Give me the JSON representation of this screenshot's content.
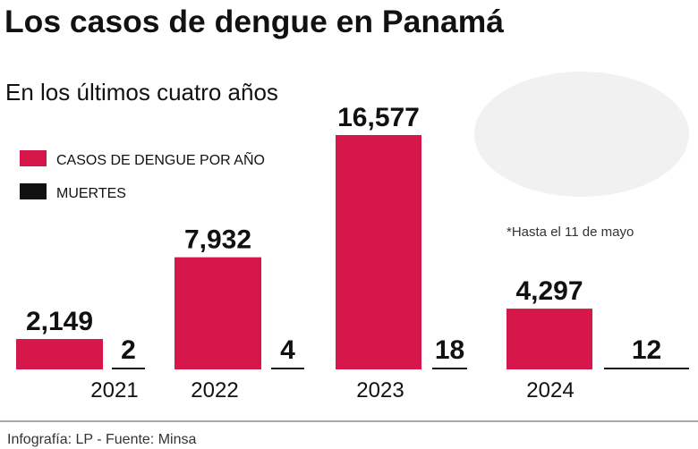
{
  "chart_data": {
    "type": "bar",
    "title": "Los casos de dengue en Panamá",
    "subtitle": "En los últimos cuatro años",
    "categories": [
      "2021",
      "2022",
      "2023",
      "2024"
    ],
    "series": [
      {
        "name": "CASOS DE DENGUE POR AÑO",
        "color": "#d6174b",
        "values": [
          2149,
          7932,
          16577,
          4297
        ],
        "value_labels": [
          "2,149",
          "7,932",
          "16,577",
          "4,297"
        ]
      },
      {
        "name": "MUERTES",
        "color": "#111111",
        "values": [
          2,
          4,
          18,
          12
        ]
      }
    ],
    "annotation": "*Hasta el 11 de mayo",
    "source": "Infografía: LP - Fuente: Minsa"
  }
}
